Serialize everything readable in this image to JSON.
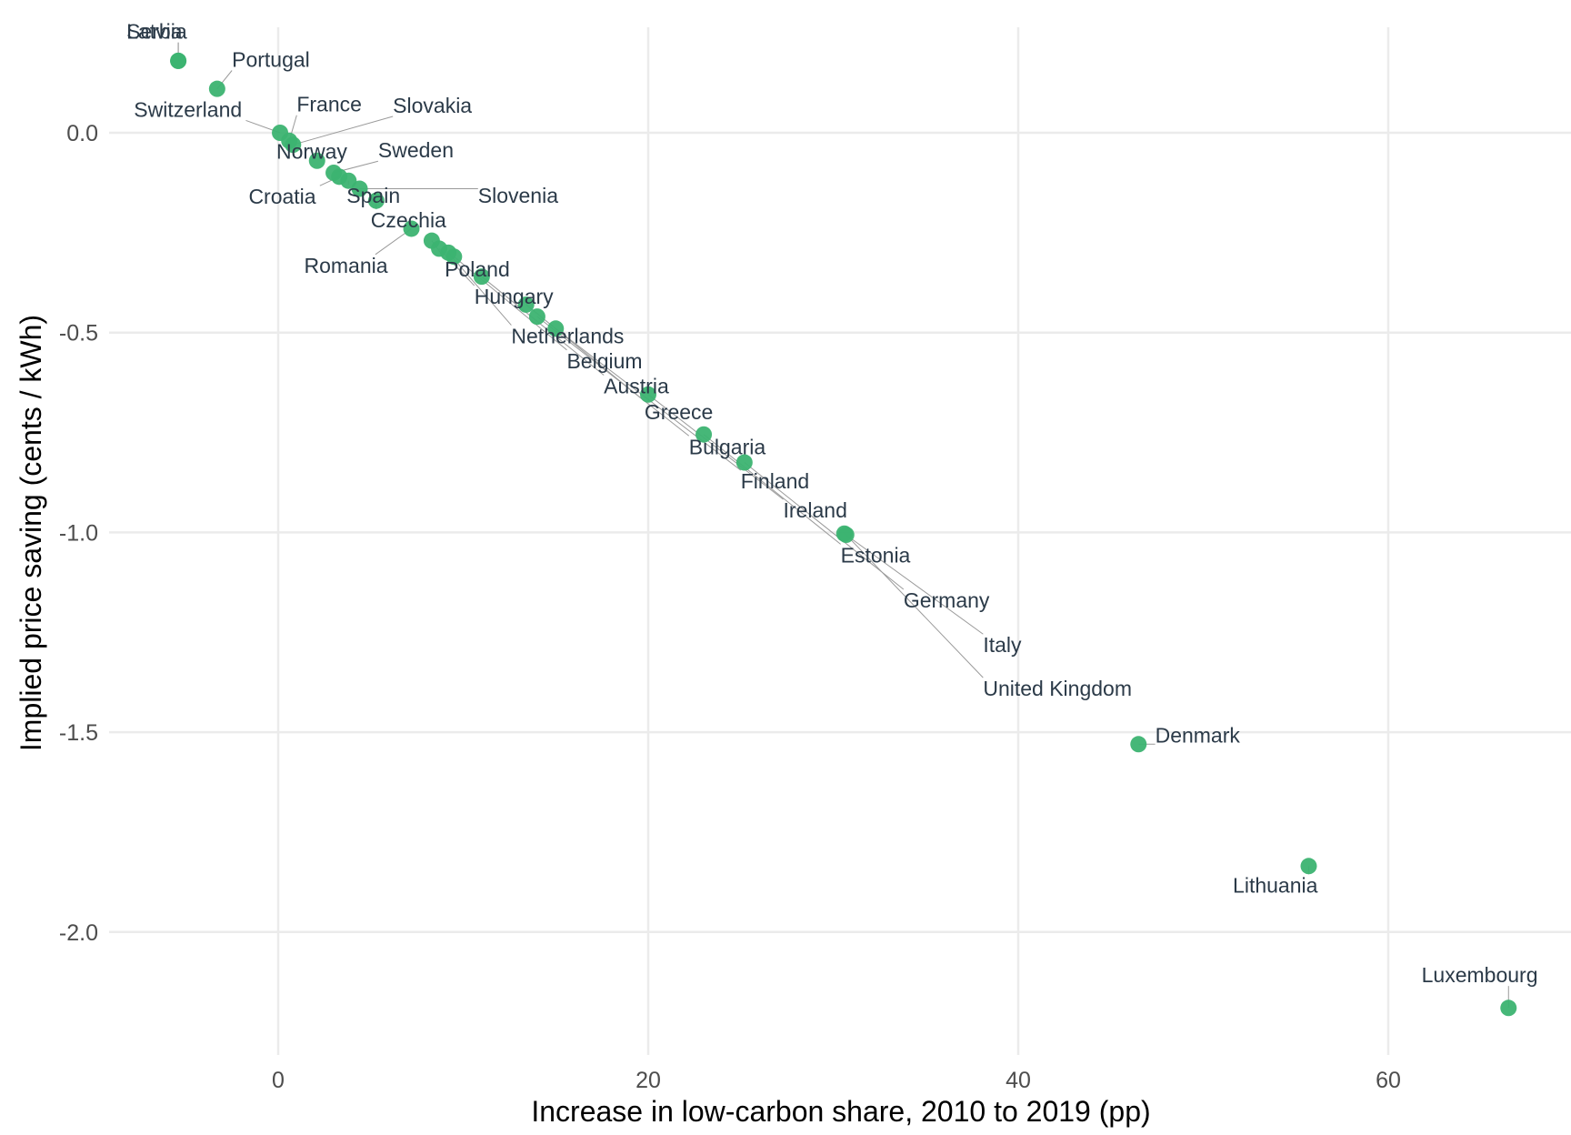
{
  "chart_data": {
    "type": "scatter",
    "title": "",
    "xlabel": "Increase in low-carbon share, 2010 to 2019 (pp)",
    "ylabel": "Implied price saving (cents / kWh)",
    "xlim": [
      -10,
      70
    ],
    "ylim": [
      -2.3,
      0.25
    ],
    "xticks": [
      0,
      20,
      40,
      60
    ],
    "yticks": [
      0.0,
      -0.5,
      -1.0,
      -1.5,
      -2.0
    ],
    "xtick_labels": [
      "0",
      "20",
      "40",
      "60"
    ],
    "ytick_labels": [
      "0.0",
      "-0.5",
      "-1.0",
      "-1.5",
      "-2.0"
    ],
    "grid": true,
    "point_color": "#3cb371",
    "points": [
      {
        "label": "Serbia",
        "x": -5.4,
        "y": 0.18
      },
      {
        "label": "Latvia",
        "x": -5.4,
        "y": 0.18
      },
      {
        "label": "Portugal",
        "x": -3.3,
        "y": 0.11
      },
      {
        "label": "Switzerland",
        "x": 0.1,
        "y": 0.0
      },
      {
        "label": "France",
        "x": 0.6,
        "y": -0.02
      },
      {
        "label": "Slovakia",
        "x": 0.8,
        "y": -0.03
      },
      {
        "label": "Norway",
        "x": 2.1,
        "y": -0.07
      },
      {
        "label": "Sweden",
        "x": 3.0,
        "y": -0.1
      },
      {
        "label": "Croatia",
        "x": 3.3,
        "y": -0.11
      },
      {
        "label": "Spain",
        "x": 3.8,
        "y": -0.12
      },
      {
        "label": "Slovenia",
        "x": 4.4,
        "y": -0.14
      },
      {
        "label": "Czechia",
        "x": 5.3,
        "y": -0.17
      },
      {
        "label": "Romania",
        "x": 7.2,
        "y": -0.24
      },
      {
        "label": "Poland",
        "x": 8.3,
        "y": -0.27
      },
      {
        "label": "Hungary",
        "x": 8.7,
        "y": -0.29
      },
      {
        "label": "Netherlands",
        "x": 9.2,
        "y": -0.3
      },
      {
        "label": "Belgium",
        "x": 9.5,
        "y": -0.31
      },
      {
        "label": "Austria",
        "x": 11.0,
        "y": -0.36
      },
      {
        "label": "Greece",
        "x": 13.4,
        "y": -0.43
      },
      {
        "label": "Bulgaria",
        "x": 14.0,
        "y": -0.46
      },
      {
        "label": "Finland",
        "x": 15.0,
        "y": -0.49
      },
      {
        "label": "Ireland",
        "x": 20.0,
        "y": -0.655
      },
      {
        "label": "Estonia",
        "x": 23.0,
        "y": -0.755
      },
      {
        "label": "Germany",
        "x": 25.2,
        "y": -0.825
      },
      {
        "label": "Italy",
        "x": 30.6,
        "y": -1.003
      },
      {
        "label": "United Kingdom",
        "x": 30.7,
        "y": -1.006
      },
      {
        "label": "Denmark",
        "x": 46.5,
        "y": -1.53
      },
      {
        "label": "Lithuania",
        "x": 55.7,
        "y": -1.835
      },
      {
        "label": "Luxembourg",
        "x": 66.5,
        "y": -2.19
      }
    ],
    "annotations": [
      {
        "text": "Serbia",
        "x": -8.2,
        "y": 0.235
      },
      {
        "text": "Latvia",
        "x": -8.2,
        "y": 0.235
      },
      {
        "text": "Portugal",
        "x": -2.5,
        "y": 0.165
      },
      {
        "text": "Switzerland",
        "x": -7.8,
        "y": 0.04
      },
      {
        "text": "France",
        "x": 1.0,
        "y": 0.053
      },
      {
        "text": "Slovakia",
        "x": 6.2,
        "y": 0.05
      },
      {
        "text": "Norway",
        "x": -0.1,
        "y": -0.065
      },
      {
        "text": "Sweden",
        "x": 5.4,
        "y": -0.062
      },
      {
        "text": "Croatia",
        "x": -1.6,
        "y": -0.178
      },
      {
        "text": "Spain",
        "x": 3.7,
        "y": -0.175
      },
      {
        "text": "Slovenia",
        "x": 10.8,
        "y": -0.175
      },
      {
        "text": "Czechia",
        "x": 5.0,
        "y": -0.237
      },
      {
        "text": "Romania",
        "x": 1.4,
        "y": -0.35
      },
      {
        "text": "Poland",
        "x": 9.0,
        "y": -0.36
      },
      {
        "text": "Hungary",
        "x": 10.6,
        "y": -0.428
      },
      {
        "text": "Netherlands",
        "x": 12.6,
        "y": -0.527
      },
      {
        "text": "Belgium",
        "x": 15.6,
        "y": -0.589
      },
      {
        "text": "Austria",
        "x": 17.6,
        "y": -0.652
      },
      {
        "text": "Greece",
        "x": 19.8,
        "y": -0.717
      },
      {
        "text": "Bulgaria",
        "x": 22.2,
        "y": -0.804
      },
      {
        "text": "Finland",
        "x": 25.0,
        "y": -0.89
      },
      {
        "text": "Ireland",
        "x": 27.3,
        "y": -0.963
      },
      {
        "text": "Estonia",
        "x": 30.4,
        "y": -1.075
      },
      {
        "text": "Germany",
        "x": 33.8,
        "y": -1.188
      },
      {
        "text": "Italy",
        "x": 38.1,
        "y": -1.3
      },
      {
        "text": "United Kingdom",
        "x": 38.1,
        "y": -1.409
      },
      {
        "text": "Denmark",
        "x": 47.4,
        "y": -1.526
      },
      {
        "text": "Lithuania",
        "x": 51.6,
        "y": -1.901
      },
      {
        "text": "Luxembourg",
        "x": 61.8,
        "y": -2.126
      }
    ]
  }
}
